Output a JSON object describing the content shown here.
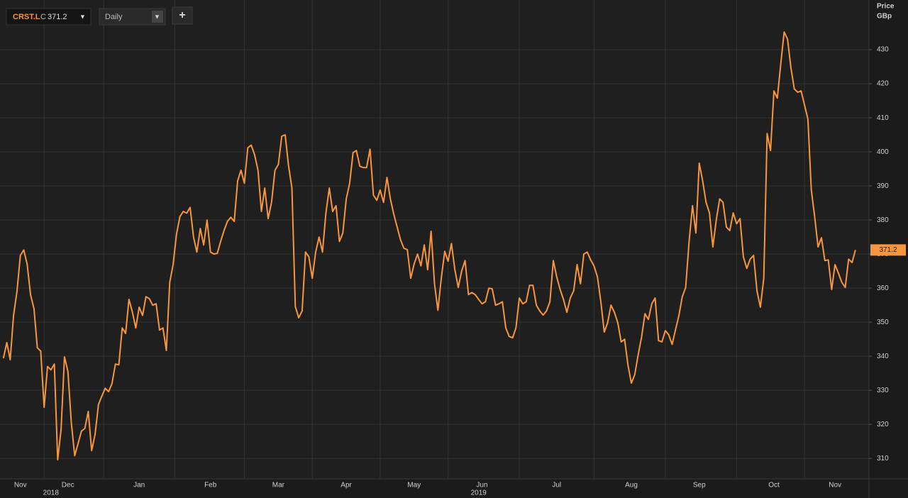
{
  "toolbar": {
    "symbol": "CRST.L",
    "close_prefix": "C",
    "interval": "Daily",
    "add_button": "+"
  },
  "chart_data": {
    "type": "line",
    "y_axis_label": "Price",
    "y_axis_unit": "GBp",
    "color": "#f7963c",
    "grid": true,
    "values": [
      339.4,
      344,
      339,
      352,
      359,
      369.6,
      371.2,
      367,
      358,
      354,
      342.5,
      341.5,
      325,
      337,
      336,
      337.7,
      309.6,
      318.5,
      339.8,
      335.6,
      320.6,
      310.8,
      314.4,
      318,
      318.8,
      323.8,
      312.3,
      317,
      325.8,
      328.3,
      330.6,
      329.6,
      332,
      337.7,
      337.5,
      348.3,
      346.7,
      356.7,
      353,
      348.3,
      354.4,
      352,
      357.5,
      356.9,
      355,
      355.4,
      347.7,
      348.3,
      341.7,
      361.7,
      366.9,
      375.8,
      381,
      382.5,
      382,
      383.7,
      375,
      370.6,
      377.5,
      372.7,
      380,
      370.6,
      370,
      370.2,
      373.7,
      376.9,
      379.6,
      380.8,
      379.6,
      391.5,
      394.6,
      390.8,
      401.2,
      402,
      399.2,
      394.6,
      382.5,
      389.4,
      380.4,
      385.2,
      394.6,
      396.3,
      404.6,
      405,
      396,
      389.4,
      354.6,
      351.3,
      353.3,
      370.6,
      369.2,
      362.9,
      370.6,
      375,
      370.6,
      382,
      389.4,
      382.5,
      384.2,
      373.7,
      376.2,
      386.2,
      390.8,
      399.8,
      400.4,
      395.8,
      395.4,
      395.4,
      400.8,
      387.3,
      385.8,
      388.8,
      385.2,
      392.5,
      386.2,
      381.7,
      377.9,
      374.2,
      371.7,
      371.3,
      362.9,
      367.1,
      370,
      366.5,
      372.7,
      365.4,
      376.7,
      361.3,
      353.5,
      362.9,
      370.8,
      367.9,
      373.1,
      365.4,
      360.2,
      365,
      368.1,
      358.1,
      358.7,
      358.1,
      356.7,
      355.4,
      356,
      360,
      359.8,
      355,
      355.4,
      356,
      348.3,
      345.8,
      345.4,
      348.3,
      357.1,
      355.4,
      356,
      360.8,
      360.8,
      355,
      353.3,
      352.1,
      353.3,
      356,
      368.1,
      363.3,
      359.6,
      356.7,
      352.9,
      357.1,
      359.2,
      366.9,
      361.3,
      370,
      370.6,
      368.3,
      366.5,
      363.3,
      356,
      347.1,
      349.8,
      355,
      352.9,
      349.8,
      344.2,
      345,
      337.3,
      332.1,
      334.6,
      340.4,
      345.6,
      352.5,
      350.8,
      355.4,
      357.1,
      344.6,
      344.2,
      347.5,
      346.3,
      343.5,
      347.7,
      351.9,
      357.5,
      360.2,
      373.7,
      384.2,
      376.2,
      396.7,
      391.5,
      385.2,
      382.1,
      372.1,
      380,
      386.2,
      385.2,
      377.9,
      376.9,
      382.1,
      378.9,
      380.4,
      369.2,
      365.8,
      368.5,
      369.6,
      359.2,
      354.4,
      362.9,
      405.4,
      400.4,
      417.9,
      415.8,
      425.8,
      435.2,
      433.1,
      424.8,
      418.5,
      417.5,
      417.9,
      413.8,
      409.6,
      388.8,
      381,
      372.1,
      374.8,
      368.1,
      368.3,
      359.6,
      366.9,
      364.4,
      361.7,
      360.2,
      368.5,
      367.5,
      371.2
    ],
    "xlim": [
      -1,
      255
    ],
    "xticks": [
      {
        "value": 5,
        "label": "Nov"
      },
      {
        "value": 19,
        "label": "Dec"
      },
      {
        "value": 40,
        "label": "Jan"
      },
      {
        "value": 61,
        "label": "Feb"
      },
      {
        "value": 81,
        "label": "Mar"
      },
      {
        "value": 101,
        "label": "Apr"
      },
      {
        "value": 121,
        "label": "May"
      },
      {
        "value": 141,
        "label": "Jun"
      },
      {
        "value": 163,
        "label": "Jul"
      },
      {
        "value": 185,
        "label": "Aug"
      },
      {
        "value": 205,
        "label": "Sep"
      },
      {
        "value": 227,
        "label": "Oct"
      },
      {
        "value": 245,
        "label": "Nov"
      }
    ],
    "year_ticks": [
      {
        "value": 14,
        "label": "2018"
      },
      {
        "value": 140,
        "label": "2019"
      }
    ],
    "ylim": [
      304,
      444.6
    ],
    "yticks": [
      310,
      320,
      330,
      340,
      350,
      360,
      370,
      380,
      390,
      400,
      410,
      420,
      430
    ]
  }
}
